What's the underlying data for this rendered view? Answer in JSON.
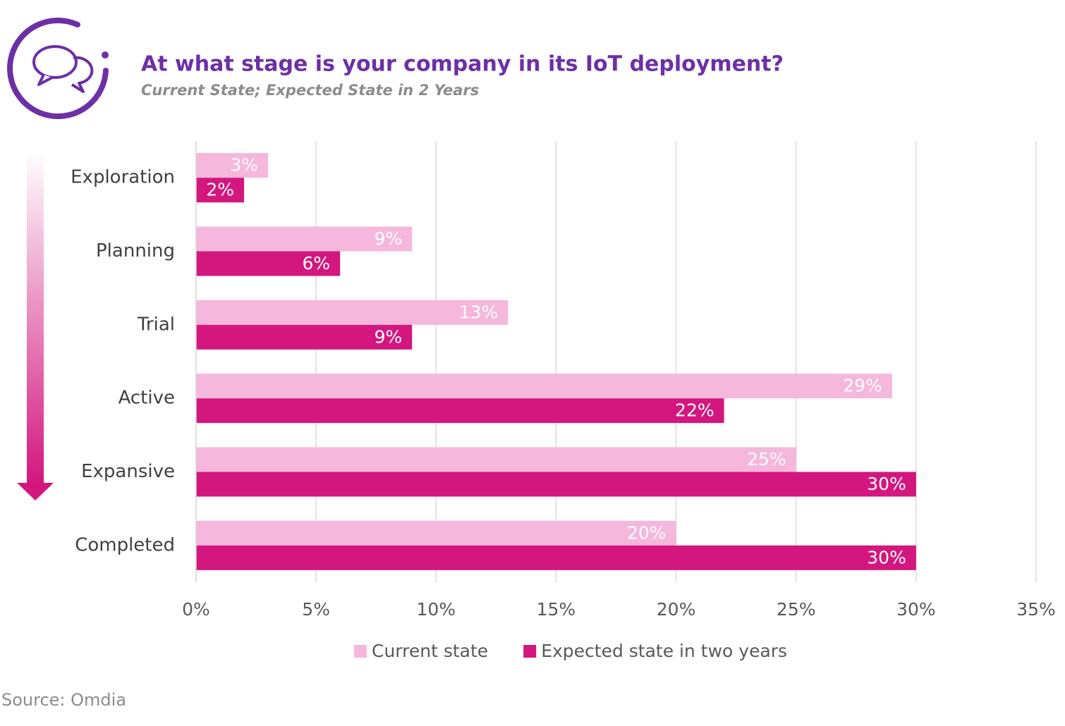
{
  "chart_data": {
    "type": "hbar",
    "title": "At what stage is your company in its IoT deployment?",
    "subtitle": "Current State; Expected State in 2 Years",
    "source": "Source: Omdia",
    "categories": [
      "Exploration",
      "Planning",
      "Trial",
      "Active",
      "Expansive",
      "Completed"
    ],
    "series": [
      {
        "name": "Current state",
        "color": "#f5b7dc",
        "values": [
          3,
          9,
          13,
          29,
          25,
          20
        ],
        "value_labels": [
          "3%",
          "9%",
          "13%",
          "29%",
          "25%",
          "20%"
        ]
      },
      {
        "name": "Expected state in two years",
        "color": "#d3177f",
        "values": [
          2,
          6,
          9,
          22,
          30,
          30
        ],
        "value_labels": [
          "2%",
          "6%",
          "9%",
          "22%",
          "30%",
          "30%"
        ]
      }
    ],
    "xlim": [
      0,
      35
    ],
    "xticks": [
      {
        "value": 0,
        "label": "0%"
      },
      {
        "value": 5,
        "label": "5%"
      },
      {
        "value": 10,
        "label": "10%"
      },
      {
        "value": 15,
        "label": "15%"
      },
      {
        "value": 20,
        "label": "20%"
      },
      {
        "value": 25,
        "label": "25%"
      },
      {
        "value": 30,
        "label": "30%"
      },
      {
        "value": 35,
        "label": "35%"
      }
    ],
    "grid": true,
    "legend": "bottom"
  }
}
